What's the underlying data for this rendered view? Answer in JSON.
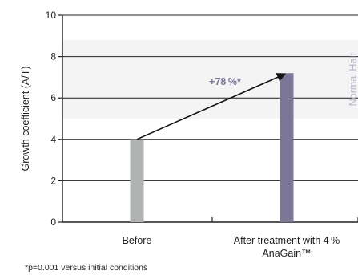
{
  "chart_data": {
    "type": "bar",
    "ylabel": "Growth coefficient (A/T)",
    "ylim": [
      0,
      10
    ],
    "yticks": [
      "0",
      "2",
      "4",
      "6",
      "8",
      "10"
    ],
    "grid": true,
    "categories": [
      {
        "line1": "Before",
        "line2": ""
      },
      {
        "line1": "After treatment with 4 %",
        "line2": "AnaGain™"
      }
    ],
    "values": [
      4.0,
      7.2
    ],
    "bar_colors": [
      "#b1b3b3",
      "#7b7596"
    ],
    "reference_band": {
      "label": "Normal Hair",
      "from": 5.0,
      "to": 8.8,
      "color": "#f4f4f4",
      "label_color": "#b7b8c9"
    },
    "annotation": {
      "text": "+78 %*",
      "color": "#7b7596"
    },
    "trend_line": {
      "from_category": 0,
      "to_category": 1
    }
  },
  "footnote": "*p=0.001 versus initial conditions"
}
